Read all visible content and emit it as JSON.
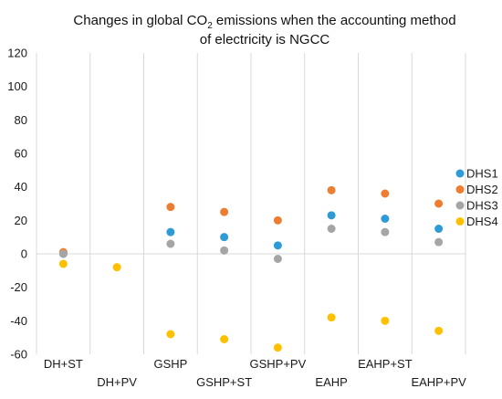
{
  "chart_data": {
    "type": "scatter",
    "title_line1_pre": "Changes in global CO",
    "title_line1_sub": "2",
    "title_line1_post": " emissions when the accounting method",
    "title_line2": "of electricity is NGCC",
    "categories": [
      "DH+ST",
      "DH+PV",
      "GSHP",
      "GSHP+ST",
      "GSHP+PV",
      "EAHP",
      "EAHP+ST",
      "EAHP+PV"
    ],
    "ylim": [
      -60,
      120
    ],
    "yticks": [
      -60,
      -40,
      -20,
      0,
      20,
      40,
      60,
      80,
      100,
      120
    ],
    "grid": "vertical category lines",
    "legend_position": "right",
    "series": [
      {
        "name": "DHS1",
        "color": "#2E9BD6",
        "values": [
          0,
          null,
          13,
          10,
          5,
          23,
          21,
          15
        ]
      },
      {
        "name": "DHS2",
        "color": "#ED7D31",
        "values": [
          1,
          null,
          28,
          25,
          20,
          38,
          36,
          30
        ]
      },
      {
        "name": "DHS3",
        "color": "#A5A5A5",
        "values": [
          0,
          null,
          6,
          2,
          -3,
          15,
          13,
          7
        ]
      },
      {
        "name": "DHS4",
        "color": "#FFC000",
        "values": [
          -6,
          -8,
          -48,
          -51,
          -56,
          -38,
          -40,
          -46
        ]
      }
    ]
  }
}
